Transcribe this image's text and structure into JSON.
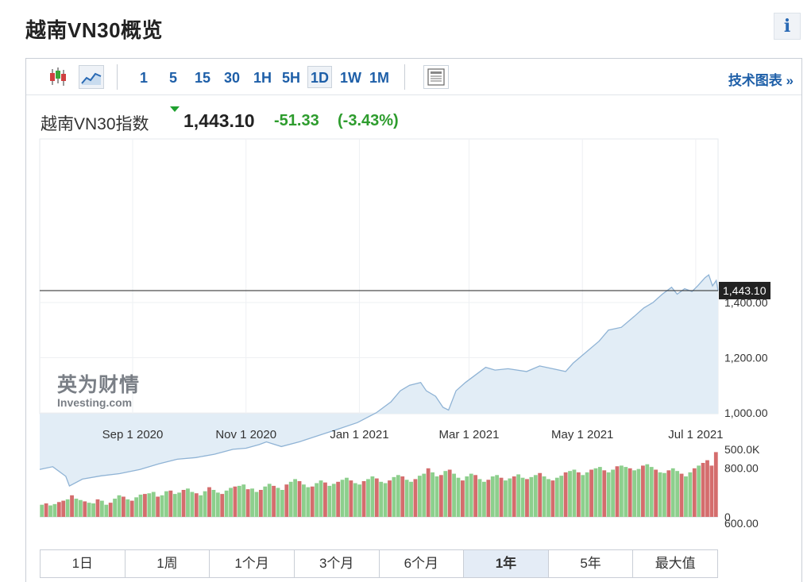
{
  "page": {
    "title": "越南VN30概览",
    "info_icon": "i"
  },
  "toolbar": {
    "chart_type_icons": [
      "candlestick-icon",
      "line-chart-icon"
    ],
    "timeframes": [
      {
        "label": "1",
        "active": false
      },
      {
        "label": "5",
        "active": false
      },
      {
        "label": "15",
        "active": false
      },
      {
        "label": "30",
        "active": false
      },
      {
        "label": "1H",
        "active": false
      },
      {
        "label": "5H",
        "active": false
      },
      {
        "label": "1D",
        "active": true
      },
      {
        "label": "1W",
        "active": false
      },
      {
        "label": "1M",
        "active": false
      }
    ],
    "table_icon": "table-view-icon",
    "tech_chart_link": "技术图表 »"
  },
  "quote": {
    "name": "越南VN30指数",
    "price": "1,443.10",
    "change": "-51.33",
    "change_pct": "(-3.43%)",
    "direction": "down",
    "change_color": "#2d9c2d"
  },
  "watermark": {
    "cn": "英为财情",
    "en": "Investing.com"
  },
  "chart_data": {
    "type": "area",
    "line_color": "#8fb3d5",
    "fill_color": "#e2edf6",
    "last_price_label": "1,443.10",
    "last_price": 1443.1,
    "ylim": [
      600,
      1600
    ],
    "y_ticks": [
      {
        "label": "600.00",
        "value": 600
      },
      {
        "label": "800.00",
        "value": 800
      },
      {
        "label": "1,000.00",
        "value": 1000
      },
      {
        "label": "1,200.00",
        "value": 1200
      },
      {
        "label": "1,400.00",
        "value": 1400
      }
    ],
    "x_ticks": [
      {
        "label": "Sep 1 2020",
        "date": "2020-09-01"
      },
      {
        "label": "Nov 1 2020",
        "date": "2020-11-01"
      },
      {
        "label": "Jan 1 2021",
        "date": "2021-01-01"
      },
      {
        "label": "Mar 1 2021",
        "date": "2021-03-01"
      },
      {
        "label": "May 1 2021",
        "date": "2021-05-01"
      },
      {
        "label": "Jul 1 2021",
        "date": "2021-07-01"
      }
    ],
    "x_range": [
      "2020-07-13",
      "2021-07-13"
    ],
    "series": [
      {
        "values": [
          [
            "2020-07-13",
            795
          ],
          [
            "2020-07-20",
            805
          ],
          [
            "2020-07-27",
            770
          ],
          [
            "2020-07-29",
            735
          ],
          [
            "2020-08-05",
            760
          ],
          [
            "2020-08-15",
            772
          ],
          [
            "2020-08-25",
            780
          ],
          [
            "2020-09-05",
            795
          ],
          [
            "2020-09-15",
            815
          ],
          [
            "2020-09-25",
            832
          ],
          [
            "2020-10-05",
            838
          ],
          [
            "2020-10-15",
            850
          ],
          [
            "2020-10-25",
            868
          ],
          [
            "2020-11-01",
            872
          ],
          [
            "2020-11-08",
            885
          ],
          [
            "2020-11-12",
            895
          ],
          [
            "2020-11-20",
            878
          ],
          [
            "2020-11-30",
            896
          ],
          [
            "2020-12-10",
            918
          ],
          [
            "2020-12-20",
            940
          ],
          [
            "2020-12-31",
            965
          ],
          [
            "2021-01-10",
            1000
          ],
          [
            "2021-01-18",
            1040
          ],
          [
            "2021-01-23",
            1080
          ],
          [
            "2021-01-28",
            1100
          ],
          [
            "2021-02-03",
            1110
          ],
          [
            "2021-02-06",
            1080
          ],
          [
            "2021-02-11",
            1060
          ],
          [
            "2021-02-15",
            1020
          ],
          [
            "2021-02-18",
            1010
          ],
          [
            "2021-02-22",
            1080
          ],
          [
            "2021-02-27",
            1110
          ],
          [
            "2021-03-05",
            1140
          ],
          [
            "2021-03-10",
            1165
          ],
          [
            "2021-03-15",
            1155
          ],
          [
            "2021-03-22",
            1160
          ],
          [
            "2021-04-01",
            1150
          ],
          [
            "2021-04-08",
            1170
          ],
          [
            "2021-04-15",
            1160
          ],
          [
            "2021-04-22",
            1150
          ],
          [
            "2021-04-26",
            1180
          ],
          [
            "2021-05-03",
            1220
          ],
          [
            "2021-05-10",
            1260
          ],
          [
            "2021-05-15",
            1300
          ],
          [
            "2021-05-22",
            1310
          ],
          [
            "2021-05-29",
            1350
          ],
          [
            "2021-06-03",
            1380
          ],
          [
            "2021-06-08",
            1400
          ],
          [
            "2021-06-13",
            1430
          ],
          [
            "2021-06-18",
            1455
          ],
          [
            "2021-06-21",
            1430
          ],
          [
            "2021-06-25",
            1450
          ],
          [
            "2021-06-29",
            1440
          ],
          [
            "2021-07-02",
            1460
          ],
          [
            "2021-07-06",
            1490
          ],
          [
            "2021-07-08",
            1500
          ],
          [
            "2021-07-10",
            1460
          ],
          [
            "2021-07-12",
            1480
          ],
          [
            "2021-07-13",
            1443.1
          ]
        ]
      }
    ],
    "volume": {
      "ylim": [
        0,
        500000
      ],
      "y_ticks": [
        {
          "label": "0",
          "value": 0
        },
        {
          "label": "500.0K",
          "value": 500000
        }
      ],
      "up_color": "#8dcf8d",
      "down_color": "#d46d6d",
      "bars": [
        [
          90000,
          "u"
        ],
        [
          100000,
          "d"
        ],
        [
          85000,
          "u"
        ],
        [
          95000,
          "u"
        ],
        [
          110000,
          "d"
        ],
        [
          120000,
          "d"
        ],
        [
          130000,
          "u"
        ],
        [
          160000,
          "d"
        ],
        [
          135000,
          "u"
        ],
        [
          125000,
          "u"
        ],
        [
          115000,
          "d"
        ],
        [
          105000,
          "u"
        ],
        [
          100000,
          "u"
        ],
        [
          130000,
          "d"
        ],
        [
          120000,
          "u"
        ],
        [
          90000,
          "u"
        ],
        [
          105000,
          "d"
        ],
        [
          135000,
          "u"
        ],
        [
          160000,
          "u"
        ],
        [
          150000,
          "d"
        ],
        [
          130000,
          "u"
        ],
        [
          120000,
          "d"
        ],
        [
          145000,
          "u"
        ],
        [
          165000,
          "u"
        ],
        [
          170000,
          "d"
        ],
        [
          175000,
          "u"
        ],
        [
          185000,
          "u"
        ],
        [
          150000,
          "d"
        ],
        [
          160000,
          "u"
        ],
        [
          190000,
          "u"
        ],
        [
          195000,
          "d"
        ],
        [
          170000,
          "u"
        ],
        [
          180000,
          "u"
        ],
        [
          200000,
          "d"
        ],
        [
          210000,
          "u"
        ],
        [
          185000,
          "u"
        ],
        [
          175000,
          "d"
        ],
        [
          160000,
          "u"
        ],
        [
          190000,
          "u"
        ],
        [
          220000,
          "d"
        ],
        [
          200000,
          "u"
        ],
        [
          180000,
          "u"
        ],
        [
          170000,
          "d"
        ],
        [
          195000,
          "u"
        ],
        [
          215000,
          "u"
        ],
        [
          225000,
          "d"
        ],
        [
          230000,
          "u"
        ],
        [
          240000,
          "u"
        ],
        [
          205000,
          "d"
        ],
        [
          210000,
          "u"
        ],
        [
          185000,
          "u"
        ],
        [
          200000,
          "d"
        ],
        [
          225000,
          "u"
        ],
        [
          245000,
          "u"
        ],
        [
          230000,
          "d"
        ],
        [
          215000,
          "u"
        ],
        [
          200000,
          "u"
        ],
        [
          240000,
          "d"
        ],
        [
          260000,
          "u"
        ],
        [
          280000,
          "u"
        ],
        [
          265000,
          "d"
        ],
        [
          240000,
          "u"
        ],
        [
          220000,
          "u"
        ],
        [
          225000,
          "d"
        ],
        [
          250000,
          "u"
        ],
        [
          270000,
          "u"
        ],
        [
          255000,
          "d"
        ],
        [
          230000,
          "u"
        ],
        [
          245000,
          "u"
        ],
        [
          260000,
          "d"
        ],
        [
          275000,
          "u"
        ],
        [
          290000,
          "u"
        ],
        [
          270000,
          "d"
        ],
        [
          250000,
          "u"
        ],
        [
          240000,
          "u"
        ],
        [
          265000,
          "d"
        ],
        [
          280000,
          "u"
        ],
        [
          300000,
          "u"
        ],
        [
          285000,
          "d"
        ],
        [
          260000,
          "u"
        ],
        [
          250000,
          "u"
        ],
        [
          270000,
          "d"
        ],
        [
          295000,
          "u"
        ],
        [
          310000,
          "u"
        ],
        [
          300000,
          "d"
        ],
        [
          275000,
          "u"
        ],
        [
          260000,
          "u"
        ],
        [
          280000,
          "d"
        ],
        [
          305000,
          "u"
        ],
        [
          320000,
          "u"
        ],
        [
          360000,
          "d"
        ],
        [
          330000,
          "u"
        ],
        [
          300000,
          "u"
        ],
        [
          310000,
          "d"
        ],
        [
          340000,
          "u"
        ],
        [
          350000,
          "d"
        ],
        [
          320000,
          "u"
        ],
        [
          290000,
          "u"
        ],
        [
          270000,
          "d"
        ],
        [
          300000,
          "u"
        ],
        [
          320000,
          "u"
        ],
        [
          310000,
          "d"
        ],
        [
          280000,
          "u"
        ],
        [
          260000,
          "u"
        ],
        [
          275000,
          "d"
        ],
        [
          300000,
          "u"
        ],
        [
          310000,
          "u"
        ],
        [
          290000,
          "d"
        ],
        [
          270000,
          "u"
        ],
        [
          285000,
          "u"
        ],
        [
          300000,
          "d"
        ],
        [
          315000,
          "u"
        ],
        [
          290000,
          "u"
        ],
        [
          280000,
          "d"
        ],
        [
          295000,
          "u"
        ],
        [
          310000,
          "u"
        ],
        [
          325000,
          "d"
        ],
        [
          300000,
          "u"
        ],
        [
          280000,
          "u"
        ],
        [
          270000,
          "d"
        ],
        [
          290000,
          "u"
        ],
        [
          305000,
          "u"
        ],
        [
          330000,
          "d"
        ],
        [
          340000,
          "u"
        ],
        [
          350000,
          "u"
        ],
        [
          330000,
          "d"
        ],
        [
          310000,
          "u"
        ],
        [
          330000,
          "u"
        ],
        [
          350000,
          "d"
        ],
        [
          360000,
          "u"
        ],
        [
          370000,
          "u"
        ],
        [
          345000,
          "d"
        ],
        [
          330000,
          "u"
        ],
        [
          350000,
          "u"
        ],
        [
          375000,
          "d"
        ],
        [
          380000,
          "u"
        ],
        [
          370000,
          "u"
        ],
        [
          360000,
          "d"
        ],
        [
          345000,
          "u"
        ],
        [
          355000,
          "u"
        ],
        [
          380000,
          "d"
        ],
        [
          390000,
          "u"
        ],
        [
          370000,
          "u"
        ],
        [
          350000,
          "d"
        ],
        [
          330000,
          "u"
        ],
        [
          325000,
          "u"
        ],
        [
          345000,
          "d"
        ],
        [
          360000,
          "u"
        ],
        [
          340000,
          "u"
        ],
        [
          320000,
          "d"
        ],
        [
          300000,
          "u"
        ],
        [
          330000,
          "u"
        ],
        [
          360000,
          "d"
        ],
        [
          380000,
          "u"
        ],
        [
          400000,
          "d"
        ],
        [
          420000,
          "d"
        ],
        [
          380000,
          "d"
        ],
        [
          480000,
          "d"
        ]
      ]
    }
  },
  "range_buttons": [
    {
      "label": "1日",
      "active": false
    },
    {
      "label": "1周",
      "active": false
    },
    {
      "label": "1个月",
      "active": false
    },
    {
      "label": "3个月",
      "active": false
    },
    {
      "label": "6个月",
      "active": false
    },
    {
      "label": "1年",
      "active": true
    },
    {
      "label": "5年",
      "active": false
    },
    {
      "label": "最大值",
      "active": false
    }
  ]
}
